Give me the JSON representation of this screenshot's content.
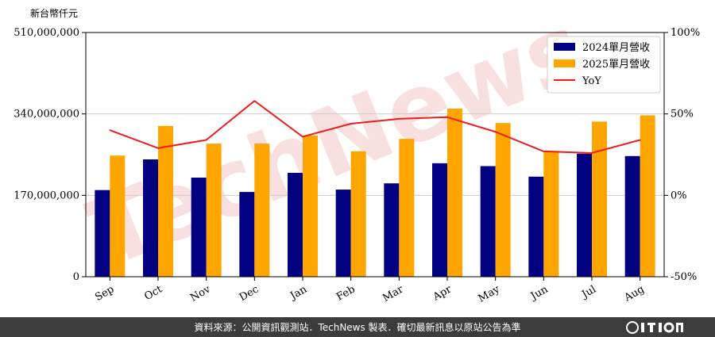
{
  "unit_label": "新台幣仟元",
  "footer": {
    "source_text": "資料來源：公開資訊觀測站．TechNews 製表．確切最新訊息以原站公告為準"
  },
  "watermark_text": "TechNews",
  "colors": {
    "series_2024": "#000080",
    "series_2025": "#ffa500",
    "yoy_line": "#ee1c1c",
    "footer_bg": "#3c3c3c",
    "grid": "#cccccc",
    "watermark": "#f4c6c6"
  },
  "chart_data": {
    "type": "bar",
    "categories": [
      "Sep",
      "Oct",
      "Nov",
      "Dec",
      "Jan",
      "Feb",
      "Mar",
      "Apr",
      "May",
      "Jun",
      "Jul",
      "Aug"
    ],
    "series": [
      {
        "name": "2024單月營收",
        "type": "bar",
        "axis": "left",
        "values": [
          181000000,
          245000000,
          207000000,
          177000000,
          217000000,
          182000000,
          195000000,
          237000000,
          231000000,
          209000000,
          257000000,
          252000000
        ]
      },
      {
        "name": "2025單月營收",
        "type": "bar",
        "axis": "left",
        "values": [
          253000000,
          315000000,
          278000000,
          278000000,
          295000000,
          262000000,
          288000000,
          351000000,
          321000000,
          263000000,
          324000000,
          337000000
        ]
      },
      {
        "name": "YoY",
        "type": "line",
        "axis": "right",
        "values": [
          40,
          29,
          34,
          58,
          36,
          44,
          47,
          48,
          39,
          27,
          26,
          34
        ]
      }
    ],
    "y_left": {
      "range": [
        0,
        510000000
      ],
      "ticks": [
        0,
        170000000,
        340000000,
        510000000
      ],
      "tick_labels": [
        "0",
        "170,000,000",
        "340,000,000",
        "510,000,000"
      ]
    },
    "y_right": {
      "range": [
        -50,
        100
      ],
      "ticks": [
        -50,
        0,
        50,
        100
      ],
      "tick_labels": [
        "-50%",
        "0%",
        "50%",
        "100%"
      ]
    },
    "legend_position": "top-right",
    "grid": "horizontal"
  }
}
